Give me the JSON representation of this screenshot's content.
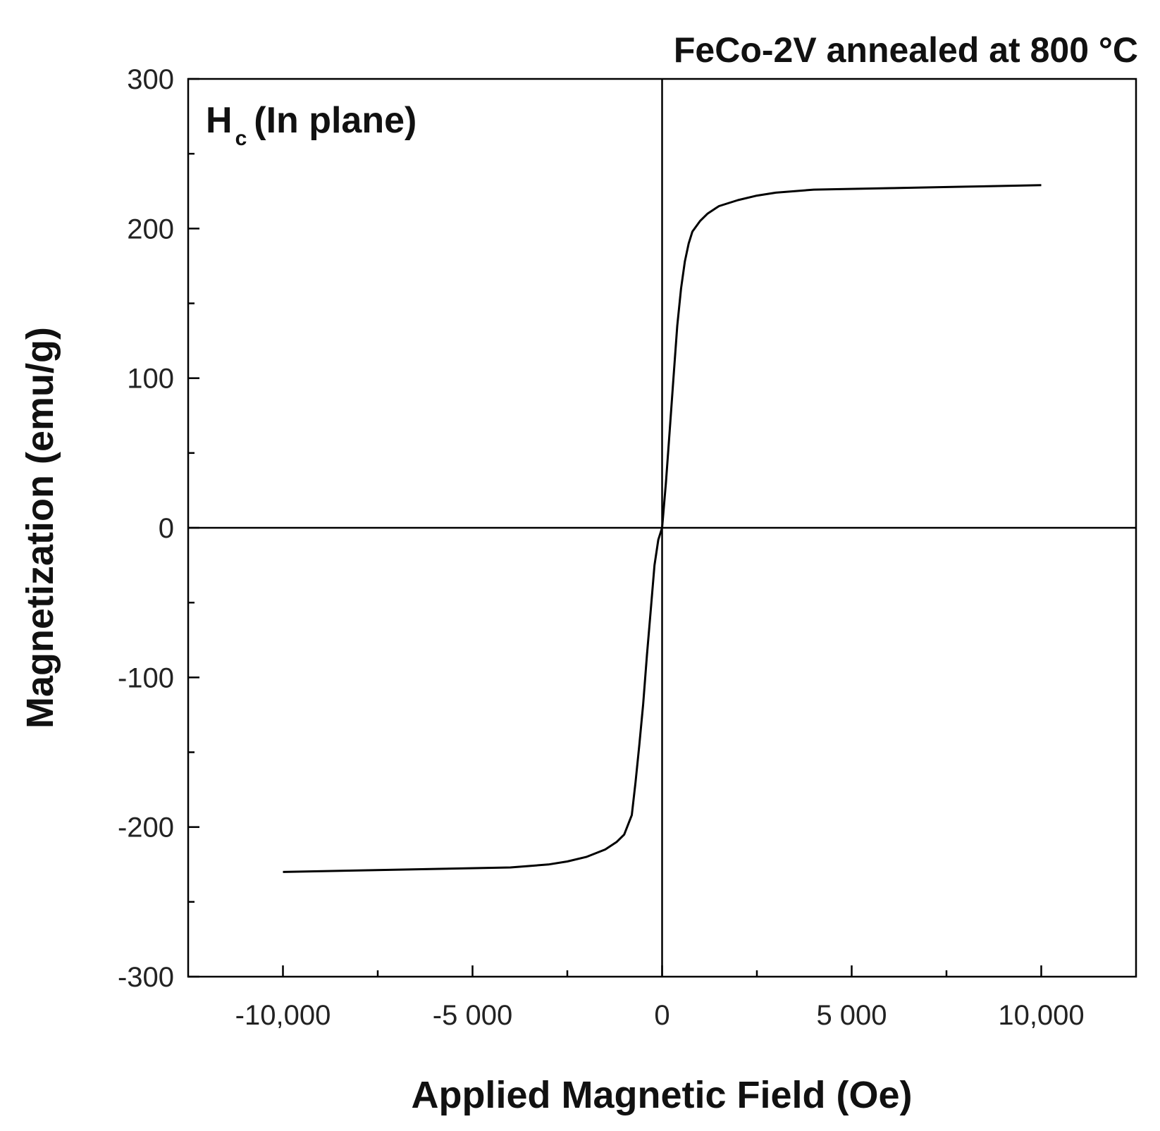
{
  "chart_data": {
    "type": "line",
    "title": "FeCo-2V annealed at 800 °C",
    "annotation": {
      "main": "H",
      "subscript": "c",
      "rest": "(In plane)"
    },
    "xlabel": "Applied Magnetic Field (Oe)",
    "ylabel": "Magnetization (emu/g)",
    "xlim": [
      -12500,
      12500
    ],
    "ylim": [
      -300,
      300
    ],
    "x_ticks": [
      -10000,
      -5000,
      0,
      5000,
      10000
    ],
    "x_tick_labels": [
      "-10,000",
      "-5 000",
      "0",
      "5 000",
      "10,000"
    ],
    "y_ticks": [
      -300,
      -200,
      -100,
      0,
      100,
      200,
      300
    ],
    "y_tick_labels": [
      "-300",
      "-200",
      "-100",
      "0",
      "100",
      "200",
      "300"
    ],
    "grid": false,
    "reference_lines": {
      "x": 0,
      "y": 0
    },
    "line_color": "#000000",
    "series": [
      {
        "x": [
          -10000,
          -8000,
          -6000,
          -4000,
          -3000,
          -2500,
          -2000,
          -1500,
          -1200,
          -1000,
          -800,
          -700,
          -600,
          -500,
          -400,
          -300,
          -200,
          -100,
          0,
          100,
          200,
          300,
          400,
          500,
          600,
          700,
          800,
          1000,
          1200,
          1500,
          2000,
          2500,
          3000,
          4000,
          6000,
          8000,
          10000
        ],
        "y": [
          -230,
          -229,
          -228,
          -227,
          -225,
          -223,
          -220,
          -215,
          -210,
          -205,
          -192,
          -170,
          -145,
          -118,
          -85,
          -55,
          -25,
          -8,
          0,
          30,
          65,
          100,
          135,
          160,
          178,
          190,
          198,
          205,
          210,
          215,
          219,
          222,
          224,
          226,
          227,
          228,
          229
        ]
      }
    ]
  }
}
